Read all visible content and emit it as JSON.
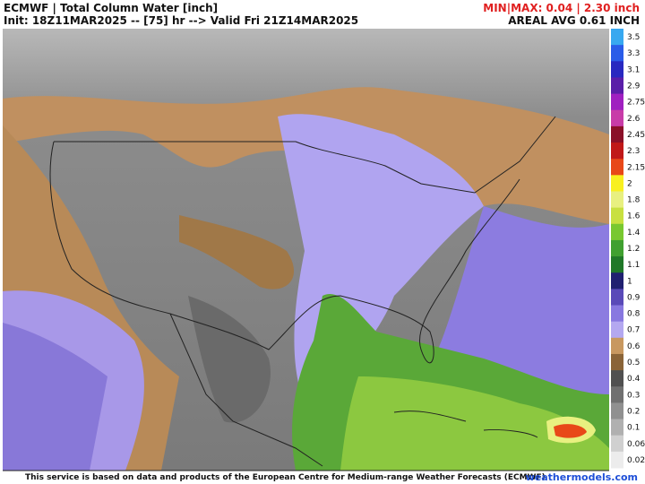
{
  "header": {
    "title": "ECMWF | Total Column Water [inch]",
    "init": "Init: 18Z11MAR2025 -- [75] hr --> Valid Fri 21Z14MAR2025",
    "minmax": "MIN|MAX: 0.04 | 2.30 inch",
    "areal_avg": "AREAL AVG 0.61 INCH"
  },
  "colorbar": {
    "levels": [
      {
        "label": 3.5,
        "color": "#38a8f0"
      },
      {
        "label": 3.3,
        "color": "#2a5ce8"
      },
      {
        "label": 3.1,
        "color": "#2828c0"
      },
      {
        "label": 2.9,
        "color": "#5a1ea8"
      },
      {
        "label": 2.75,
        "color": "#a020c0"
      },
      {
        "label": 2.6,
        "color": "#c83ca8"
      },
      {
        "label": 2.45,
        "color": "#8a1028"
      },
      {
        "label": 2.3,
        "color": "#c01818"
      },
      {
        "label": 2.15,
        "color": "#e84818"
      },
      {
        "label": 2,
        "color": "#f8f020"
      },
      {
        "label": 1.8,
        "color": "#e8f080"
      },
      {
        "label": 1.6,
        "color": "#c8e040"
      },
      {
        "label": 1.4,
        "color": "#78c830"
      },
      {
        "label": 1.2,
        "color": "#40a030"
      },
      {
        "label": 1.1,
        "color": "#207828"
      },
      {
        "label": 1,
        "color": "#202070"
      },
      {
        "label": 0.9,
        "color": "#5a4ab8"
      },
      {
        "label": 0.8,
        "color": "#8878e0"
      },
      {
        "label": 0.7,
        "color": "#b4a8f0"
      },
      {
        "label": 0.6,
        "color": "#c89860"
      },
      {
        "label": 0.5,
        "color": "#8a6438"
      },
      {
        "label": 0.4,
        "color": "#505050"
      },
      {
        "label": 0.3,
        "color": "#707070"
      },
      {
        "label": 0.2,
        "color": "#909090"
      },
      {
        "label": 0.1,
        "color": "#b0b0b0"
      },
      {
        "label": 0.06,
        "color": "#d0d0d0"
      },
      {
        "label": 0.02,
        "color": "#ececec"
      }
    ]
  },
  "footer": {
    "credit": "This service is based on data and products of the European Centre for Medium-range Weather Forecasts (ECMWF)",
    "site": "weathermodels.com"
  }
}
